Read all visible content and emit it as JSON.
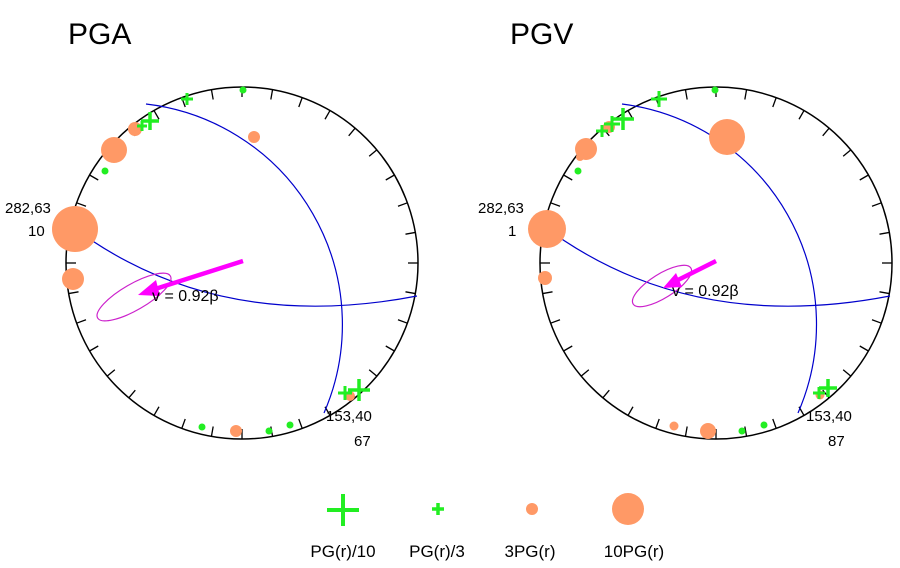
{
  "colors": {
    "outline": "#000000",
    "great_circle": "#0000cc",
    "arrow": "#ff00ff",
    "ellipse": "#cc22cc",
    "plus": "#22ee22",
    "dot": "#ff9966"
  },
  "panels": [
    {
      "id": "pga",
      "title": "PGA",
      "velocity_label": "v = 0.92β",
      "nodal_left": {
        "line1": "282,63",
        "line2": "10"
      },
      "nodal_right": {
        "line1": "153,40",
        "line2": "67"
      }
    },
    {
      "id": "pgv",
      "title": "PGV",
      "velocity_label": "v = 0.92β",
      "nodal_left": {
        "line1": "282,63",
        "line2": "1"
      },
      "nodal_right": {
        "line1": "153,40",
        "line2": "87"
      }
    }
  ],
  "legend": [
    {
      "id": "pg10",
      "label": "PG(r)/10",
      "icon": "large-plus-icon"
    },
    {
      "id": "pg3",
      "label": "PG(r)/3",
      "icon": "small-plus-icon"
    },
    {
      "id": "3pg",
      "label": "3PG(r)",
      "icon": "small-dot-icon"
    },
    {
      "id": "10pg",
      "label": "10PG(r)",
      "icon": "large-dot-icon"
    }
  ]
}
